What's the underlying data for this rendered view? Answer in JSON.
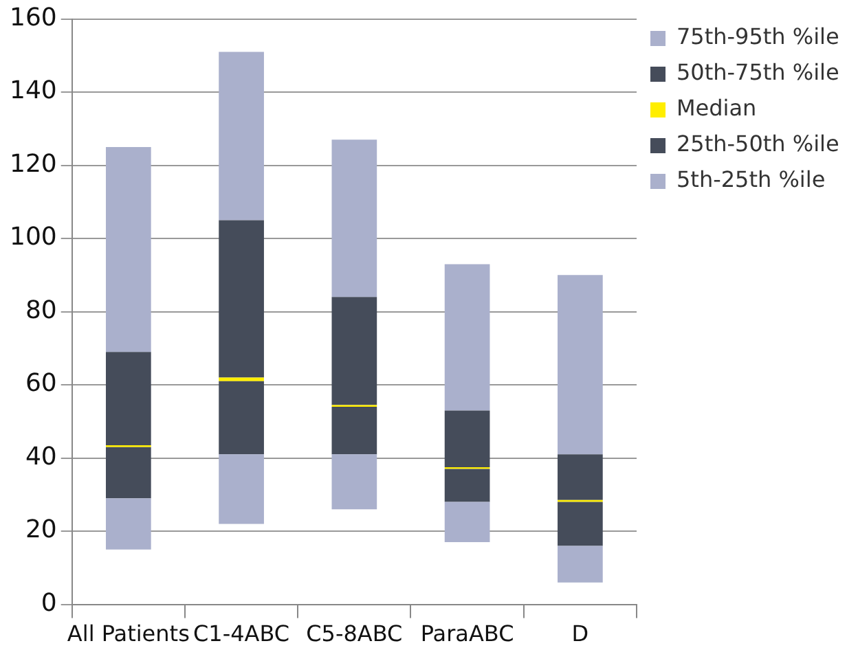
{
  "chart_data": {
    "type": "bar",
    "categories": [
      "All Patients",
      "C1-4ABC",
      "C5-8ABC",
      "ParaABC",
      "D"
    ],
    "series": [
      {
        "name": "5th-25th %ile",
        "color": "#aab0cc",
        "base": [
          15,
          22,
          26,
          17,
          6
        ],
        "values": [
          14,
          19,
          15,
          11,
          10
        ]
      },
      {
        "name": "25th-50th %ile",
        "color": "#454c5a",
        "base": [
          29,
          41,
          41,
          28,
          16
        ],
        "values": [
          14,
          20,
          13,
          9,
          12
        ]
      },
      {
        "name": "Median",
        "color": "#ffee00",
        "base": [
          43,
          61,
          54,
          37,
          28
        ],
        "values": [
          0.5,
          1,
          0.5,
          0.5,
          0.5
        ]
      },
      {
        "name": "50th-75th %ile",
        "color": "#454c5a",
        "base": [
          43.5,
          62,
          54.5,
          37.5,
          28.5
        ],
        "values": [
          25.5,
          43,
          29.5,
          15.5,
          12.5
        ]
      },
      {
        "name": "75th-95th %ile",
        "color": "#aab0cc",
        "base": [
          69,
          105,
          84,
          53,
          41
        ],
        "values": [
          56,
          46,
          43,
          40,
          49
        ]
      }
    ],
    "ylim": [
      0,
      160
    ],
    "yticks": [
      0,
      20,
      40,
      60,
      80,
      100,
      120,
      140,
      160
    ],
    "grid": "y",
    "legend": "top right"
  }
}
